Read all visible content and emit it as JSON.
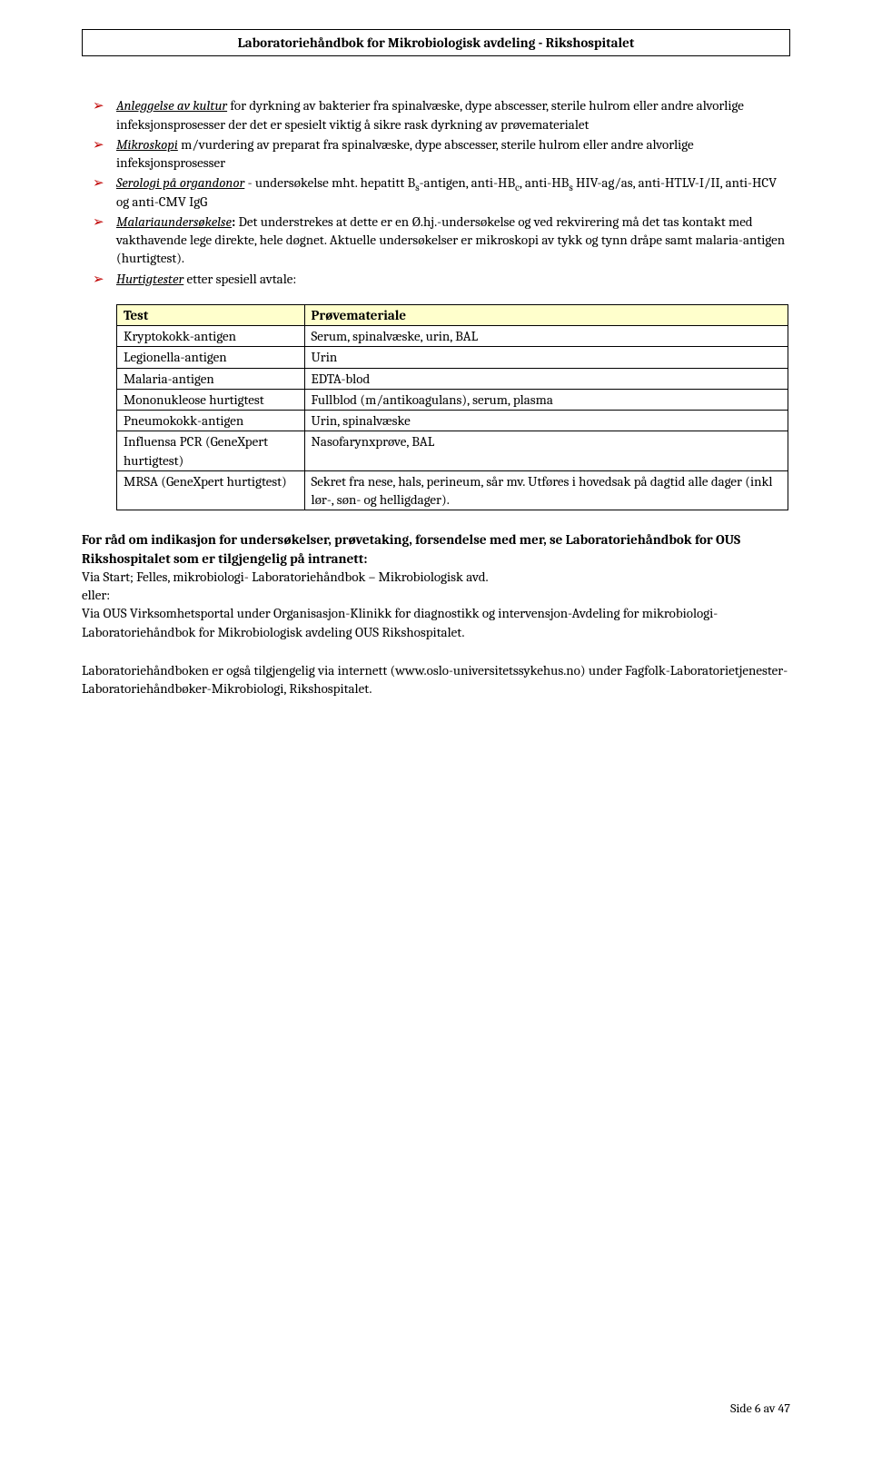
{
  "header": {
    "title": "Laboratoriehåndbok for Mikrobiologisk avdeling - Rikshospitalet"
  },
  "bullets": [
    {
      "lead": "Anleggelse av kultur",
      "lead_style": "underline-italic",
      "rest": " for dyrkning av bakterier fra spinalvæske, dype abscesser, sterile hulrom eller andre alvorlige infeksjonsprosesser der det er spesielt viktig å sikre rask dyrkning av prøvematerialet"
    },
    {
      "lead": "Mikroskopi",
      "lead_style": "underline-italic",
      "rest": " m/vurdering av preparat fra spinalvæske, dype abscesser, sterile hulrom eller andre alvorlige infeksjonsprosesser"
    },
    {
      "lead": "Serologi på organdonor",
      "lead_style": "underline-italic",
      "rest_parts": [
        {
          "t": " - undersøkelse mht. hepatitt B"
        },
        {
          "t": "s",
          "sub": true
        },
        {
          "t": "-antigen, anti-HB"
        },
        {
          "t": "c",
          "sub": true
        },
        {
          "t": ", anti-HB"
        },
        {
          "t": "s",
          "sub": true
        },
        {
          "t": " HIV-ag/as, anti-HTLV-I/II, anti-HCV og anti-CMV IgG"
        }
      ]
    },
    {
      "lead": "Malariaundersøkelse",
      "lead_style": "underline-italic",
      "bold_colon": ":",
      "rest": " Det understrekes at dette er en Ø.hj.-undersøkelse og ved rekvirering må det tas kontakt med vakthavende lege direkte, hele døgnet. Aktuelle undersøkelser er mikroskopi av tykk og tynn dråpe samt malaria-antigen (hurtigtest)."
    },
    {
      "lead": "Hurtigtester",
      "lead_style": "underline-italic",
      "rest": " etter spesiell avtale:"
    }
  ],
  "table": {
    "header": {
      "col1": "Test",
      "col2": "Prøvemateriale"
    },
    "header_bg": "#ffffcc",
    "rows": [
      {
        "c1": "Kryptokokk-antigen",
        "c2": "Serum, spinalvæske, urin, BAL"
      },
      {
        "c1": "Legionella-antigen",
        "c2": "Urin"
      },
      {
        "c1": "Malaria-antigen",
        "c2": "EDTA-blod"
      },
      {
        "c1": "Mononukleose hurtigtest",
        "c2": "Fullblod (m/antikoagulans), serum, plasma"
      },
      {
        "c1": "Pneumokokk-antigen",
        "c2": "Urin, spinalvæske"
      },
      {
        "c1": "Influensa PCR (GeneXpert hurtigtest)",
        "c2": "Nasofarynxprøve, BAL"
      },
      {
        "c1": "MRSA (GeneXpert hurtigtest)",
        "c2": "Sekret fra nese, hals, perineum, sår mv. Utføres i hovedsak på dagtid alle dager (inkl lør-, søn- og helligdager)."
      }
    ]
  },
  "para1": {
    "bold1": "For råd om indikasjon for undersøkelser, prøvetaking, forsendelse med mer, se Laboratoriehåndbok for OUS Rikshospitalet som er tilgjengelig på intranett:",
    "line2": "Via Start; Felles, mikrobiologi- Laboratoriehåndbok – Mikrobiologisk avd.",
    "line3": "eller:",
    "line4": "Via OUS Virksomhetsportal under Organisasjon-Klinikk for diagnostikk og intervensjon-Avdeling for mikrobiologi-Laboratoriehåndbok for Mikrobiologisk avdeling OUS Rikshospitalet."
  },
  "para2": "Laboratoriehåndboken er også tilgjengelig via internett (www.oslo-universitetssykehus.no) under Fagfolk-Laboratorietjenester-Laboratoriehåndbøker-Mikrobiologi, Rikshospitalet.",
  "footer": "Side 6 av 47"
}
